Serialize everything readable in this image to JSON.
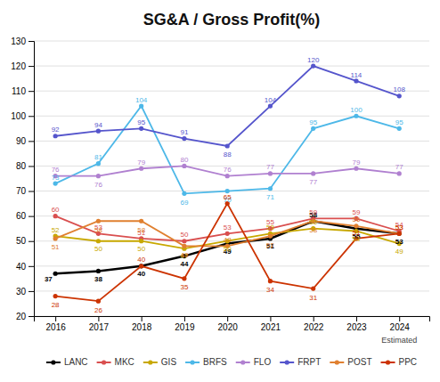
{
  "chart_data": {
    "type": "line",
    "title": "SG&A / Gross Profit(%)",
    "x": [
      2016,
      2017,
      2018,
      2019,
      2020,
      2021,
      2022,
      2023,
      2024
    ],
    "xlim": [
      2015.5,
      2024.7
    ],
    "xticks": [
      2016,
      2017,
      2018,
      2019,
      2020,
      2021,
      2022,
      2023,
      2024
    ],
    "ylim": [
      20,
      130
    ],
    "yticks": [
      20,
      30,
      40,
      50,
      60,
      70,
      80,
      90,
      100,
      110,
      120,
      130
    ],
    "grid": true,
    "legend": "bottom",
    "data_labels": true,
    "marker": "circle",
    "line_style": "solid",
    "annotations": [
      {
        "text": "Estimated",
        "x": 2024
      }
    ],
    "series": [
      {
        "name": "LANC",
        "color": "#000000",
        "values": [
          37,
          38,
          40,
          44,
          49,
          51,
          58,
          55,
          53
        ]
      },
      {
        "name": "MKC",
        "color": "#d94f4f",
        "values": [
          60,
          53,
          51,
          50,
          53,
          55,
          59,
          59,
          54
        ]
      },
      {
        "name": "GIS",
        "color": "#c8a800",
        "values": [
          52,
          50,
          50,
          47,
          50,
          53,
          55,
          54,
          49
        ]
      },
      {
        "name": "BRFS",
        "color": "#4db8e8",
        "values": [
          73,
          81,
          104,
          69,
          70,
          71,
          95,
          100,
          95
        ]
      },
      {
        "name": "FLO",
        "color": "#b080d0",
        "values": [
          76,
          76,
          79,
          80,
          76,
          77,
          77,
          79,
          77
        ]
      },
      {
        "name": "FRPT",
        "color": "#5555cc",
        "values": [
          92,
          94,
          95,
          91,
          88,
          104,
          120,
          114,
          108
        ]
      },
      {
        "name": "POST",
        "color": "#e08030",
        "values": [
          51,
          58,
          58,
          48,
          48,
          52,
          58,
          56,
          53
        ]
      },
      {
        "name": "PPC",
        "color": "#cc3300",
        "values": [
          28,
          26,
          40,
          35,
          65,
          34,
          31,
          51,
          53
        ]
      }
    ]
  }
}
